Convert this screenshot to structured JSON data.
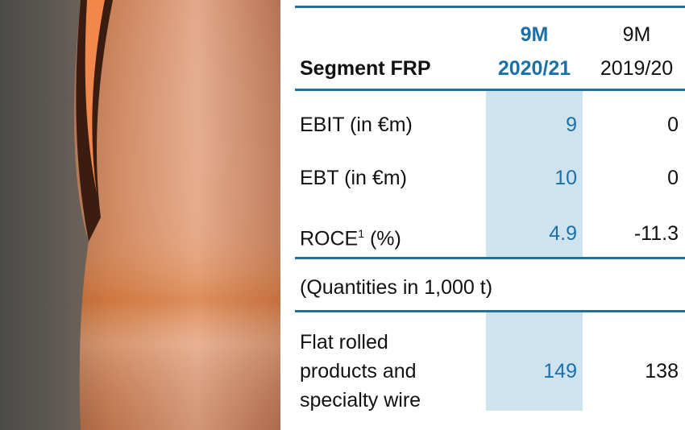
{
  "table": {
    "header": {
      "label": "Segment FRP",
      "current": [
        "9M",
        "2020/21"
      ],
      "previous": [
        "9M",
        "2019/20"
      ]
    },
    "rows": [
      {
        "label": "EBIT (in €m)",
        "current": 9,
        "previous": 0
      },
      {
        "label": "EBT (in €m)",
        "current": 10,
        "previous": 0
      },
      {
        "label": [
          "ROCE",
          "1",
          " (%)"
        ],
        "current": 4.9,
        "previous": -11.3
      }
    ],
    "note": "(Quantities in 1,000 t)",
    "quantity_row": {
      "label": [
        "Flat rolled",
        "products and",
        "specialty wire"
      ],
      "current": 149,
      "previous": 138
    }
  }
}
